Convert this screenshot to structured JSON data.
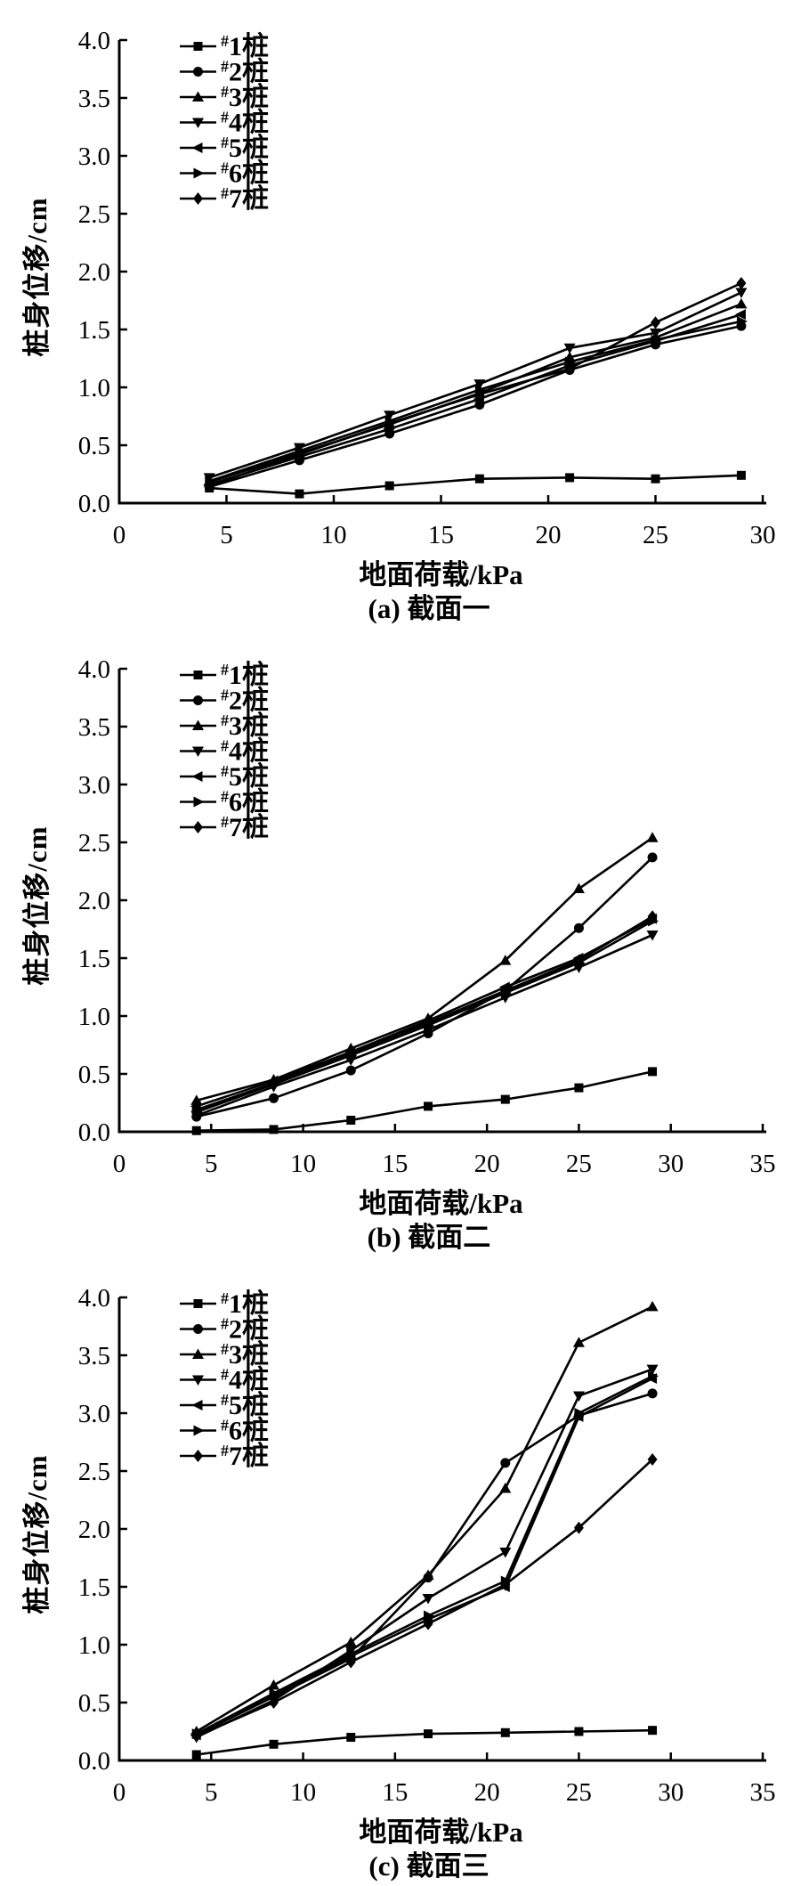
{
  "colors": {
    "ink": "#000000",
    "background": "#ffffff"
  },
  "chart_data": [
    {
      "type": "line",
      "caption": "(a) 截面一",
      "xlabel": "地面荷载/kPa",
      "ylabel": "桩身位移/cm",
      "xlim": [
        0,
        30
      ],
      "ylim": [
        0,
        4.0
      ],
      "xticks": [
        "0",
        "5",
        "10",
        "15",
        "20",
        "25",
        "30"
      ],
      "yticks": [
        "0.0",
        "0.5",
        "1.0",
        "1.5",
        "2.0",
        "2.5",
        "3.0",
        "3.5",
        "4.0"
      ],
      "legend_position": "upper-left",
      "grid": false,
      "x": [
        4.2,
        8.4,
        12.6,
        16.8,
        21,
        25,
        29
      ],
      "series": [
        {
          "name": "#1桩",
          "sup": "#",
          "label": "1桩",
          "marker": "square",
          "values": [
            0.13,
            0.08,
            0.15,
            0.21,
            0.22,
            0.21,
            0.24
          ]
        },
        {
          "name": "#2桩",
          "sup": "#",
          "label": "2桩",
          "marker": "circle",
          "values": [
            0.14,
            0.37,
            0.6,
            0.85,
            1.15,
            1.37,
            1.53
          ]
        },
        {
          "name": "#3桩",
          "sup": "#",
          "label": "3桩",
          "marker": "triangle-up",
          "values": [
            0.18,
            0.43,
            0.68,
            0.95,
            1.26,
            1.43,
            1.72
          ]
        },
        {
          "name": "#4桩",
          "sup": "#",
          "label": "4桩",
          "marker": "triangle-down",
          "values": [
            0.22,
            0.48,
            0.76,
            1.03,
            1.34,
            1.47,
            1.82
          ]
        },
        {
          "name": "#5桩",
          "sup": "#",
          "label": "5桩",
          "marker": "triangle-left",
          "values": [
            0.16,
            0.4,
            0.64,
            0.9,
            1.19,
            1.4,
            1.63
          ]
        },
        {
          "name": "#6桩",
          "sup": "#",
          "label": "6桩",
          "marker": "triangle-right",
          "values": [
            0.19,
            0.45,
            0.71,
            0.98,
            1.22,
            1.41,
            1.57
          ]
        },
        {
          "name": "#7桩",
          "sup": "#",
          "label": "7桩",
          "marker": "diamond",
          "values": [
            0.15,
            0.42,
            0.69,
            0.94,
            1.16,
            1.56,
            1.9
          ]
        }
      ]
    },
    {
      "type": "line",
      "caption": "(b) 截面二",
      "xlabel": "地面荷载/kPa",
      "ylabel": "桩身位移/cm",
      "xlim": [
        0,
        35
      ],
      "ylim": [
        0,
        4.0
      ],
      "xticks": [
        "0",
        "5",
        "10",
        "15",
        "20",
        "25",
        "30",
        "35"
      ],
      "yticks": [
        "0.0",
        "0.5",
        "1.0",
        "1.5",
        "2.0",
        "2.5",
        "3.0",
        "3.5",
        "4.0"
      ],
      "legend_position": "upper-left",
      "grid": false,
      "x": [
        4.2,
        8.4,
        12.6,
        16.8,
        21,
        25,
        29
      ],
      "series": [
        {
          "name": "#1桩",
          "sup": "#",
          "label": "1桩",
          "marker": "square",
          "values": [
            0.01,
            0.02,
            0.1,
            0.22,
            0.28,
            0.38,
            0.52
          ]
        },
        {
          "name": "#2桩",
          "sup": "#",
          "label": "2桩",
          "marker": "circle",
          "values": [
            0.13,
            0.29,
            0.53,
            0.85,
            1.22,
            1.76,
            2.37
          ]
        },
        {
          "name": "#3桩",
          "sup": "#",
          "label": "3桩",
          "marker": "triangle-up",
          "values": [
            0.27,
            0.45,
            0.72,
            0.98,
            1.48,
            2.1,
            2.54
          ]
        },
        {
          "name": "#4桩",
          "sup": "#",
          "label": "4桩",
          "marker": "triangle-down",
          "values": [
            0.14,
            0.39,
            0.62,
            0.88,
            1.16,
            1.42,
            1.7
          ]
        },
        {
          "name": "#5桩",
          "sup": "#",
          "label": "5桩",
          "marker": "triangle-left",
          "values": [
            0.22,
            0.44,
            0.69,
            0.96,
            1.25,
            1.5,
            1.84
          ]
        },
        {
          "name": "#6桩",
          "sup": "#",
          "label": "6桩",
          "marker": "triangle-right",
          "values": [
            0.17,
            0.41,
            0.66,
            0.92,
            1.2,
            1.46,
            1.82
          ]
        },
        {
          "name": "#7桩",
          "sup": "#",
          "label": "7桩",
          "marker": "diamond",
          "values": [
            0.19,
            0.42,
            0.68,
            0.94,
            1.22,
            1.48,
            1.86
          ]
        }
      ]
    },
    {
      "type": "line",
      "caption": "(c) 截面三",
      "xlabel": "地面荷载/kPa",
      "ylabel": "桩身位移/cm",
      "xlim": [
        0,
        35
      ],
      "ylim": [
        0,
        4.0
      ],
      "xticks": [
        "0",
        "5",
        "10",
        "15",
        "20",
        "25",
        "30",
        "35"
      ],
      "yticks": [
        "0.0",
        "0.5",
        "1.0",
        "1.5",
        "2.0",
        "2.5",
        "3.0",
        "3.5",
        "4.0"
      ],
      "legend_position": "upper-left",
      "grid": false,
      "x": [
        4.2,
        8.4,
        12.6,
        16.8,
        21,
        25,
        29
      ],
      "series": [
        {
          "name": "#1桩",
          "sup": "#",
          "label": "1桩",
          "marker": "square",
          "values": [
            0.05,
            0.14,
            0.2,
            0.23,
            0.24,
            0.25,
            0.26
          ]
        },
        {
          "name": "#2桩",
          "sup": "#",
          "label": "2桩",
          "marker": "circle",
          "values": [
            0.22,
            0.55,
            0.88,
            1.58,
            2.57,
            2.98,
            3.17
          ]
        },
        {
          "name": "#3桩",
          "sup": "#",
          "label": "3桩",
          "marker": "triangle-up",
          "values": [
            0.25,
            0.65,
            1.02,
            1.6,
            2.35,
            3.61,
            3.92
          ]
        },
        {
          "name": "#4桩",
          "sup": "#",
          "label": "4桩",
          "marker": "triangle-down",
          "values": [
            0.2,
            0.52,
            0.95,
            1.4,
            1.8,
            3.15,
            3.38
          ]
        },
        {
          "name": "#5桩",
          "sup": "#",
          "label": "5桩",
          "marker": "triangle-left",
          "values": [
            0.22,
            0.56,
            0.9,
            1.22,
            1.5,
            2.97,
            3.3
          ]
        },
        {
          "name": "#6桩",
          "sup": "#",
          "label": "6桩",
          "marker": "triangle-right",
          "values": [
            0.23,
            0.58,
            0.92,
            1.25,
            1.55,
            3.0,
            3.32
          ]
        },
        {
          "name": "#7桩",
          "sup": "#",
          "label": "7桩",
          "marker": "diamond",
          "values": [
            0.21,
            0.5,
            0.85,
            1.18,
            1.52,
            2.01,
            2.6
          ]
        }
      ]
    }
  ]
}
